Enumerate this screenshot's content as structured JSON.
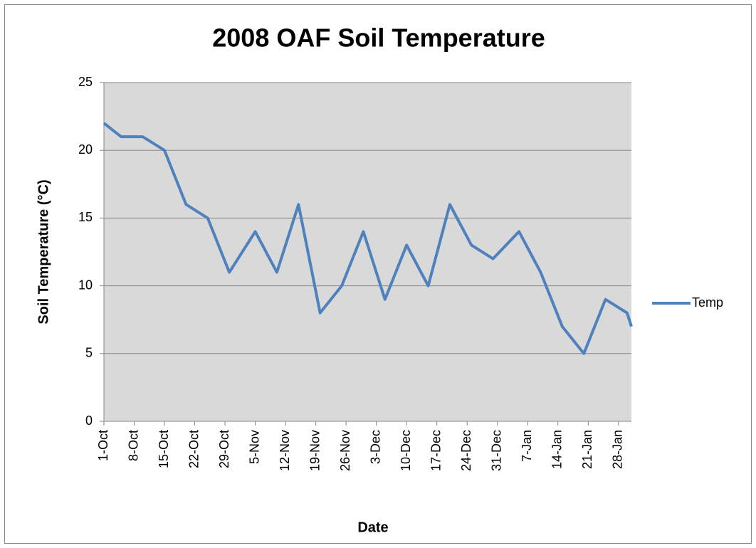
{
  "chart_data": {
    "type": "line",
    "title": "2008 OAF Soil Temperature",
    "x_label": "Date",
    "y_label": "Soil Temperature (°C)",
    "x": [
      "1-Oct",
      "5-Oct",
      "10-Oct",
      "15-Oct",
      "20-Oct",
      "25-Oct",
      "30-Oct",
      "5-Nov",
      "10-Nov",
      "15-Nov",
      "20-Nov",
      "25-Nov",
      "30-Nov",
      "5-Dec",
      "10-Dec",
      "15-Dec",
      "20-Dec",
      "25-Dec",
      "30-Dec",
      "5-Jan",
      "10-Jan",
      "15-Jan",
      "20-Jan",
      "25-Jan",
      "30-Jan",
      "31-Jan"
    ],
    "series": [
      {
        "name": "Temp",
        "color": "#4f81bd",
        "values": [
          22,
          21,
          21,
          20,
          16,
          15,
          11,
          14,
          11,
          16,
          8,
          10,
          14,
          9,
          13,
          10,
          16,
          13,
          12,
          14,
          11,
          7,
          5,
          9,
          8,
          7
        ]
      }
    ],
    "xlim": [
      "1-Oct",
      "31-Jan"
    ],
    "xticks": [
      "1-Oct",
      "8-Oct",
      "15-Oct",
      "22-Oct",
      "29-Oct",
      "5-Nov",
      "12-Nov",
      "19-Nov",
      "26-Nov",
      "3-Dec",
      "10-Dec",
      "17-Dec",
      "24-Dec",
      "31-Dec",
      "7-Jan",
      "14-Jan",
      "21-Jan",
      "28-Jan"
    ],
    "ylim": [
      0,
      25
    ],
    "yticks": [
      0,
      5,
      10,
      15,
      20,
      25
    ],
    "grid": true,
    "legend": "right"
  }
}
